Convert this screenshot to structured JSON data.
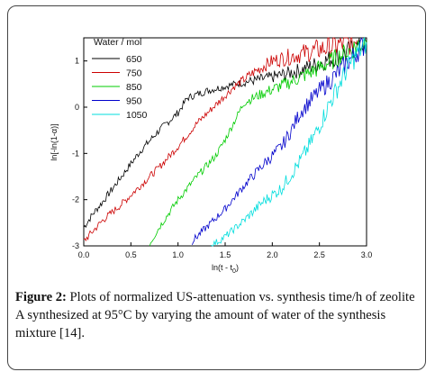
{
  "chart_data": {
    "type": "line",
    "legend_title": "Water / mol",
    "legend_position": "top-left",
    "xlabel_main": "ln(t - t",
    "xlabel_sub": "0",
    "xlabel_end": ")",
    "ylabel": "ln[-ln(1-α)]",
    "xlim": [
      0.0,
      3.0
    ],
    "ylim": [
      -3.0,
      1.5
    ],
    "x_ticks": [
      "0.0",
      "0.5",
      "1.0",
      "1.5",
      "2.0",
      "2.5",
      "3.0"
    ],
    "y_ticks": [
      "1",
      "0",
      "-1",
      "-2",
      "-3"
    ],
    "grid": false,
    "series": [
      {
        "name": "650",
        "color": "#000000",
        "x": [
          0.0,
          0.1,
          0.2,
          0.4,
          0.6,
          0.8,
          1.0,
          1.1,
          1.3,
          1.6,
          2.0,
          2.3,
          2.5,
          2.8,
          3.0
        ],
        "y": [
          -2.6,
          -2.3,
          -2.05,
          -1.5,
          -0.95,
          -0.5,
          -0.12,
          0.2,
          0.35,
          0.5,
          0.65,
          0.8,
          0.95,
          1.2,
          1.4
        ]
      },
      {
        "name": "750",
        "color": "#cc0000",
        "x": [
          0.0,
          0.2,
          0.4,
          0.6,
          0.8,
          1.0,
          1.2,
          1.4,
          1.6,
          1.8,
          2.0,
          2.3,
          2.6,
          2.9
        ],
        "y": [
          -2.9,
          -2.45,
          -2.1,
          -1.7,
          -1.3,
          -0.85,
          -0.35,
          0.05,
          0.45,
          0.75,
          1.0,
          1.15,
          1.3,
          1.45
        ]
      },
      {
        "name": "850",
        "color": "#00cc00",
        "x": [
          0.7,
          0.8,
          1.0,
          1.2,
          1.4,
          1.5,
          1.6,
          1.7,
          1.9,
          2.2,
          2.5,
          2.8,
          3.0
        ],
        "y": [
          -2.95,
          -2.6,
          -2.0,
          -1.5,
          -1.05,
          -0.7,
          -0.3,
          0.1,
          0.3,
          0.55,
          0.85,
          1.2,
          1.45
        ]
      },
      {
        "name": "950",
        "color": "#0000cc",
        "x": [
          1.15,
          1.3,
          1.5,
          1.7,
          1.9,
          2.1,
          2.2,
          2.3,
          2.5,
          2.7,
          2.9,
          3.0
        ],
        "y": [
          -2.9,
          -2.6,
          -2.2,
          -1.7,
          -1.25,
          -0.85,
          -0.5,
          -0.1,
          0.35,
          0.75,
          1.2,
          1.4
        ]
      },
      {
        "name": "1050",
        "color": "#00dddd",
        "x": [
          1.35,
          1.5,
          1.7,
          1.9,
          2.1,
          2.2,
          2.3,
          2.4,
          2.5,
          2.6,
          2.7,
          2.8,
          2.9,
          3.0
        ],
        "y": [
          -3.0,
          -2.8,
          -2.45,
          -2.05,
          -1.75,
          -1.45,
          -1.15,
          -0.8,
          -0.4,
          0.05,
          0.45,
          0.85,
          1.15,
          1.4
        ]
      }
    ]
  },
  "caption": {
    "label": "Figure 2:",
    "text": " Plots of normalized US-attenuation vs. synthesis time/h of zeolite A synthesized at 95°C by varying the amount of water of the synthesis mixture [14]."
  }
}
